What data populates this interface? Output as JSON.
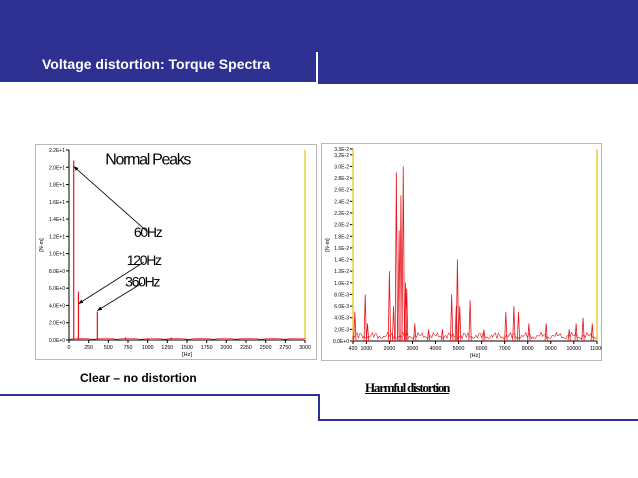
{
  "slide": {
    "title": "Voltage distortion: Torque Spectra",
    "caption_left": "Clear – no distortion",
    "caption_right": "Harmful distortion"
  },
  "colors": {
    "band": "#2e3192",
    "series": "#e8141c",
    "cursor": "#e8d23a"
  },
  "chart_data": [
    {
      "type": "bar",
      "xlabel": "[Hz]",
      "ylabel": "[N-m]",
      "xlim": [
        0,
        3000
      ],
      "ylim": [
        0,
        22
      ],
      "x_ticks": [
        0,
        250,
        500,
        750,
        1000,
        1250,
        1500,
        1750,
        2000,
        2250,
        2500,
        2750,
        3000
      ],
      "x_tick_labels": [
        "0",
        "250",
        "500",
        "750",
        "1000",
        "1250",
        "1500",
        "1750",
        "2000",
        "2250",
        "2500",
        "2750",
        "3000"
      ],
      "y_ticks": [
        0,
        2,
        4,
        6,
        8,
        10,
        12,
        14,
        16,
        18,
        20,
        22
      ],
      "y_tick_labels": [
        "0.0E+0",
        "2.0E+0",
        "4.0E+0",
        "6.0E+0",
        "8.0E+0",
        "1.0E+1",
        "1.2E+1",
        "1.4E+1",
        "1.6E+1",
        "1.8E+1",
        "2.0E+1",
        "2.2E+1"
      ],
      "series": [
        {
          "x": [
            60,
            120,
            360,
            720,
            1000,
            1300,
            1800,
            2150,
            2500,
            2800
          ],
          "values": [
            20.8,
            5.6,
            3.3,
            0.3,
            0.2,
            0.3,
            0.15,
            0.2,
            0.15,
            0.1
          ]
        }
      ],
      "annotations": [
        {
          "text": "Normal Peaks",
          "x": 1000,
          "y": 20.3
        },
        {
          "text": "60Hz",
          "x": 1000,
          "y": 11.9
        },
        {
          "text": "120Hz",
          "x": 950,
          "y": 8.7
        },
        {
          "text": "360Hz",
          "x": 930,
          "y": 6.2
        }
      ],
      "arrows": [
        {
          "from": [
            1000,
            12.5
          ],
          "to": [
            60,
            20.1
          ]
        },
        {
          "from": [
            950,
            9.0
          ],
          "to": [
            120,
            4.2
          ]
        },
        {
          "from": [
            930,
            6.6
          ],
          "to": [
            360,
            3.4
          ]
        }
      ],
      "cursor_x": 3000,
      "grid": false
    },
    {
      "type": "line",
      "xlabel": "[Hz]",
      "ylabel": "[N-m]",
      "xlim": [
        420,
        11006
      ],
      "ylim": [
        0,
        0.033
      ],
      "x_ticks": [
        420,
        1000,
        2000,
        3000,
        4000,
        5000,
        6000,
        7000,
        8000,
        9000,
        10000,
        11006
      ],
      "x_tick_labels": [
        "420",
        "1000",
        "2000",
        "3000",
        "4000",
        "5000",
        "6000",
        "7000",
        "8000",
        "9000",
        "10000",
        "11006"
      ],
      "y_ticks": [
        0,
        0.002,
        0.004,
        0.006,
        0.008,
        0.01,
        0.012,
        0.014,
        0.016,
        0.018,
        0.02,
        0.022,
        0.024,
        0.026,
        0.028,
        0.03,
        0.032,
        0.033
      ],
      "y_tick_labels": [
        "0.0E+0",
        "2.0E-3",
        "4.0E-3",
        "6.0E-3",
        "8.0E-3",
        "1.0E-2",
        "1.2E-2",
        "1.4E-2",
        "1.6E-2",
        "1.8E-2",
        "2.0E-2",
        "2.2E-2",
        "2.4E-2",
        "2.6E-2",
        "2.8E-2",
        "3.0E-2",
        "3.2E-2",
        "3.3E-2"
      ],
      "series": [
        {
          "x": [
            500,
            950,
            1050,
            2000,
            2180,
            2300,
            2420,
            2500,
            2600,
            2700,
            2750,
            3100,
            3700,
            4300,
            4700,
            4900,
            4950,
            5050,
            5500,
            6100,
            7050,
            7400,
            7600,
            8050,
            8800,
            9800,
            10100,
            10400,
            10800
          ],
          "values": [
            0.005,
            0.008,
            0.003,
            0.012,
            0.006,
            0.029,
            0.019,
            0.025,
            0.03,
            0.01,
            0.009,
            0.003,
            0.002,
            0.002,
            0.008,
            0.006,
            0.014,
            0.006,
            0.007,
            0.002,
            0.005,
            0.006,
            0.005,
            0.003,
            0.003,
            0.002,
            0.003,
            0.004,
            0.003
          ]
        }
      ],
      "cursor_x": [
        420,
        11006
      ],
      "grid": false
    }
  ]
}
